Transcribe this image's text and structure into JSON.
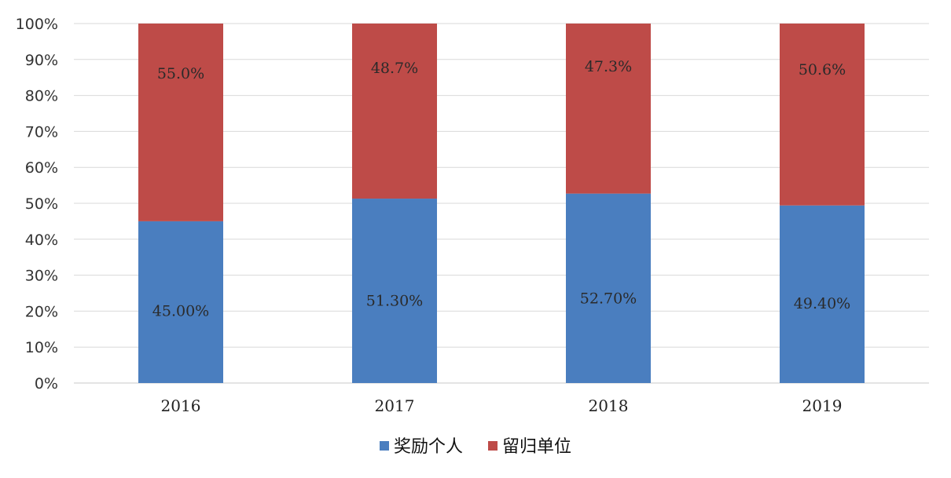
{
  "chart_data": {
    "type": "bar",
    "stacked": true,
    "percent_stacked": true,
    "categories": [
      "2016",
      "2017",
      "2018",
      "2019"
    ],
    "series": [
      {
        "name": "奖励个人",
        "color": "#4a7ebf",
        "values": [
          45.0,
          51.3,
          52.7,
          49.4
        ],
        "labels": [
          "45.00%",
          "51.30%",
          "52.70%",
          "49.40%"
        ]
      },
      {
        "name": "留归单位",
        "color": "#be4b48",
        "values": [
          55.0,
          48.7,
          47.3,
          50.6
        ],
        "labels": [
          "55.0%",
          "48.7%",
          "47.3%",
          "50.6%"
        ]
      }
    ],
    "yticks": [
      "0%",
      "10%",
      "20%",
      "30%",
      "40%",
      "50%",
      "60%",
      "70%",
      "80%",
      "90%",
      "100%"
    ],
    "ylim": [
      0,
      100
    ],
    "grid": true,
    "legend_position": "bottom"
  }
}
